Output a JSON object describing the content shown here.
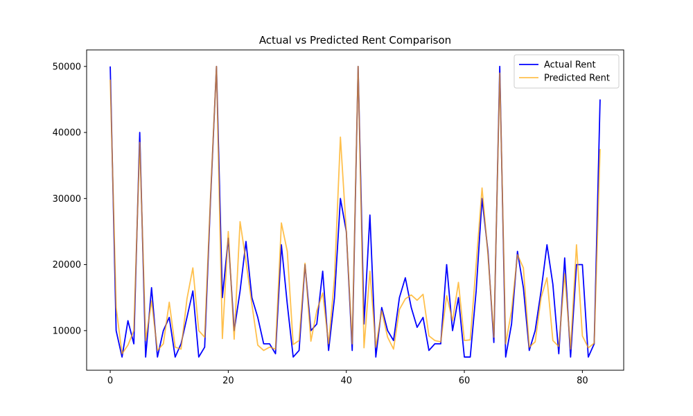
{
  "chart_data": {
    "type": "line",
    "title": "Actual vs Predicted Rent Comparison",
    "xlabel": "",
    "ylabel": "",
    "xlim": [
      -4,
      87
    ],
    "ylim": [
      4000,
      52500
    ],
    "xticks": [
      0,
      20,
      40,
      60,
      80
    ],
    "yticks": [
      10000,
      20000,
      30000,
      40000,
      50000
    ],
    "grid": false,
    "legend_position": "top-right",
    "x": [
      0,
      1,
      2,
      3,
      4,
      5,
      6,
      7,
      8,
      9,
      10,
      11,
      12,
      13,
      14,
      15,
      16,
      17,
      18,
      19,
      20,
      21,
      22,
      23,
      24,
      25,
      26,
      27,
      28,
      29,
      30,
      31,
      32,
      33,
      34,
      35,
      36,
      37,
      38,
      39,
      40,
      41,
      42,
      43,
      44,
      45,
      46,
      47,
      48,
      49,
      50,
      51,
      52,
      53,
      54,
      55,
      56,
      57,
      58,
      59,
      60,
      61,
      62,
      63,
      64,
      65,
      66,
      67,
      68,
      69,
      70,
      71,
      72,
      73,
      74,
      75,
      76,
      77,
      78,
      79,
      80,
      81,
      82,
      83
    ],
    "series": [
      {
        "name": "Actual Rent",
        "color": "#0000ff",
        "values": [
          50000,
          10000,
          6000,
          11500,
          8000,
          40000,
          6000,
          16500,
          6000,
          10000,
          12000,
          6000,
          8000,
          12000,
          16000,
          6000,
          7500,
          30000,
          50000,
          15000,
          24000,
          10000,
          16000,
          23500,
          15000,
          12000,
          8000,
          8000,
          6500,
          23000,
          14000,
          6000,
          7000,
          20000,
          10000,
          11000,
          19000,
          7000,
          15000,
          30000,
          25000,
          7000,
          50000,
          11000,
          27500,
          6000,
          13500,
          10000,
          8500,
          15000,
          18000,
          13500,
          10500,
          12000,
          7000,
          8000,
          8000,
          20000,
          10000,
          15000,
          6000,
          6000,
          16000,
          30000,
          22000,
          8200,
          50000,
          6000,
          11000,
          22000,
          16500,
          7000,
          10000,
          16000,
          23000,
          17000,
          6500,
          21000,
          6000,
          20000,
          20000,
          6000,
          8000,
          45000
        ]
      },
      {
        "name": "Predicted Rent",
        "color": "#ffa500",
        "values": [
          48000,
          13500,
          6500,
          7800,
          10000,
          38500,
          8500,
          14500,
          7000,
          8000,
          14300,
          7500,
          7200,
          14800,
          19500,
          10000,
          9000,
          30500,
          50000,
          8800,
          25000,
          8700,
          26500,
          20500,
          14000,
          7800,
          7000,
          7500,
          7200,
          26300,
          22000,
          7900,
          8500,
          20200,
          8400,
          13000,
          15700,
          8000,
          18000,
          39300,
          25000,
          8000,
          50000,
          7400,
          19000,
          7500,
          13000,
          9000,
          7200,
          13200,
          14800,
          15400,
          14600,
          15500,
          9200,
          8500,
          8300,
          15300,
          11500,
          17300,
          8500,
          8600,
          20000,
          31600,
          21500,
          9000,
          49000,
          8000,
          13000,
          21500,
          19500,
          7500,
          8300,
          15000,
          18000,
          8500,
          7600,
          18600,
          7200,
          23000,
          9200,
          7400,
          8100,
          37500
        ]
      }
    ]
  }
}
